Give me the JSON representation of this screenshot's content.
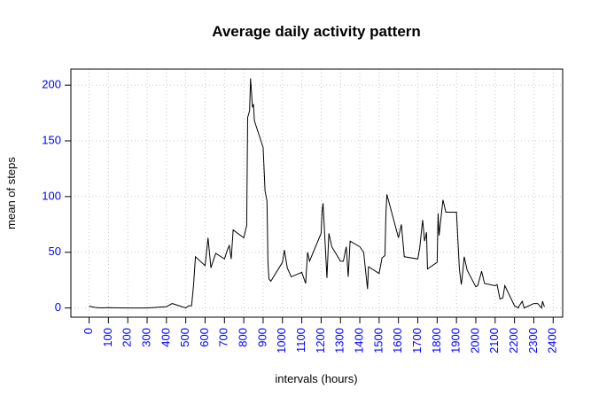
{
  "chart_data": {
    "type": "line",
    "title": "Average daily activity pattern",
    "x_label": "intervals (hours)",
    "y_label": "mean of steps",
    "x": [
      0,
      30,
      55,
      100,
      200,
      300,
      400,
      430,
      500,
      515,
      530,
      540,
      550,
      600,
      615,
      630,
      645,
      655,
      700,
      715,
      725,
      735,
      745,
      800,
      815,
      820,
      830,
      835,
      845,
      850,
      855,
      900,
      910,
      920,
      925,
      930,
      940,
      1000,
      1010,
      1025,
      1045,
      1100,
      1120,
      1130,
      1140,
      1200,
      1205,
      1210,
      1230,
      1240,
      1255,
      1300,
      1315,
      1330,
      1340,
      1350,
      1400,
      1420,
      1435,
      1440,
      1445,
      1500,
      1515,
      1530,
      1535,
      1540,
      1600,
      1615,
      1630,
      1700,
      1710,
      1725,
      1735,
      1745,
      1750,
      1800,
      1805,
      1810,
      1830,
      1845,
      1900,
      1915,
      1925,
      1930,
      1940,
      1955,
      2000,
      2010,
      2030,
      2045,
      2100,
      2110,
      2125,
      2140,
      2150,
      2200,
      2220,
      2225,
      2240,
      2250,
      2300,
      2320,
      2340,
      2345,
      2355
    ],
    "series": [
      {
        "name": "mean of steps",
        "color": "#000000",
        "values": [
          1.7,
          0.5,
          0.1,
          0.3,
          0,
          0,
          1.2,
          4,
          0,
          2,
          2,
          20,
          46,
          38,
          63,
          36,
          44,
          49,
          44,
          52,
          56,
          44,
          70,
          63,
          74,
          171,
          177,
          206,
          180,
          183,
          168,
          144,
          105,
          96,
          41,
          26,
          24,
          41,
          52,
          36,
          28,
          32,
          22,
          50,
          42,
          67,
          87,
          94,
          27,
          67,
          55,
          42,
          42,
          55,
          28,
          60,
          55,
          50,
          25,
          17,
          37,
          31,
          45,
          47,
          84,
          102,
          63,
          75,
          46,
          44,
          54,
          79,
          60,
          68,
          35,
          41,
          85,
          65,
          97,
          86,
          86,
          35,
          21,
          28,
          46,
          34,
          19,
          20,
          33,
          22,
          20,
          21,
          8,
          9,
          20,
          2,
          0,
          2,
          6,
          0,
          4,
          4,
          0,
          6,
          1
        ]
      }
    ],
    "xlim": [
      -94.2,
      2449.2
    ],
    "ylim": [
      -8.25,
      214.4
    ],
    "xticks": [
      0,
      100,
      200,
      300,
      400,
      500,
      600,
      700,
      800,
      900,
      1000,
      1100,
      1200,
      1300,
      1400,
      1500,
      1600,
      1700,
      1800,
      1900,
      2000,
      2100,
      2200,
      2300,
      2400
    ],
    "yticks": [
      0,
      50,
      100,
      150,
      200
    ],
    "grid": true
  }
}
